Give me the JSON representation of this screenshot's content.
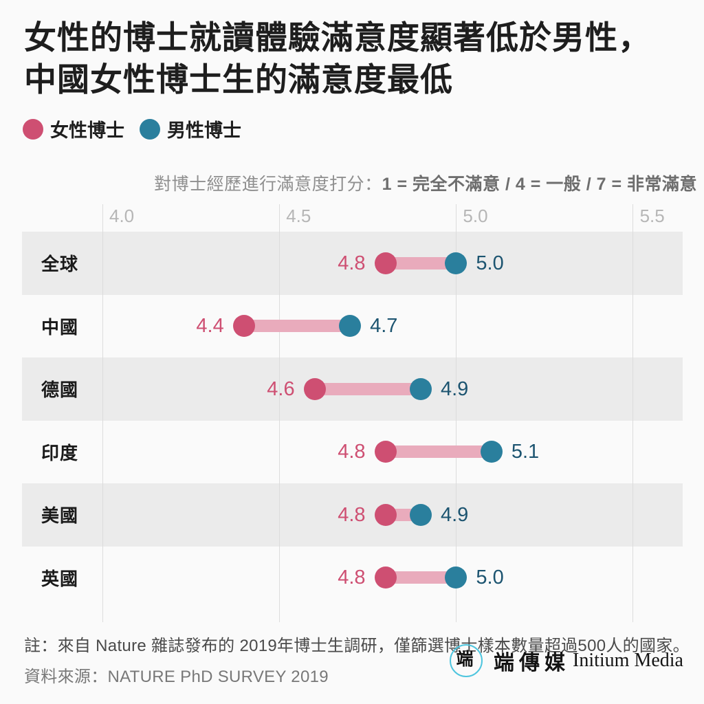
{
  "title": {
    "line1": "女性的博士就讀體驗滿意度顯著低於男性，",
    "line2": "中國女性博士生的滿意度最低"
  },
  "legend": {
    "items": [
      {
        "label": "女性博士",
        "color": "#ce4f72"
      },
      {
        "label": "男性博士",
        "color": "#2a7f9d"
      }
    ]
  },
  "chart_data": {
    "type": "dumbbell",
    "subtitle_regular": "對博士經歷進行滿意度打分：",
    "subtitle_bold": "1 = 完全不滿意 / 4 = 一般 / 7 = 非常滿意",
    "categories": [
      "全球",
      "中國",
      "德國",
      "印度",
      "美國",
      "英國"
    ],
    "series": [
      {
        "name": "女性博士",
        "values": [
          4.8,
          4.4,
          4.6,
          4.8,
          4.8,
          4.8
        ],
        "color": "#ce4f72",
        "label_color": "#ce4f72"
      },
      {
        "name": "男性博士",
        "values": [
          5.0,
          4.7,
          4.9,
          5.1,
          4.9,
          5.0
        ],
        "color": "#2a7f9d",
        "label_color": "#1c5470"
      }
    ],
    "x_axis": {
      "tick_labels": [
        "4.0",
        "4.5",
        "5.0",
        "5.5"
      ],
      "tick_values": [
        4.0,
        4.5,
        5.0,
        5.5
      ],
      "range": [
        3.78,
        5.7
      ],
      "grid": true
    },
    "legend_position": "top-left",
    "connector_color": "#e9abbc",
    "row_band_color": "#ebebeb",
    "grid_color": "#dcdcdc"
  },
  "footer": {
    "note": "註：來自 Nature 雜誌發布的 2019年博士生調研，僅篩選博士樣本數量超過500人的國家。",
    "source": "資料來源：NATURE PhD SURVEY 2019",
    "logo": {
      "glyph": "端",
      "cjk": "端傳媒",
      "latin": "Initium Media",
      "circle_color": "#4ec5de"
    }
  }
}
